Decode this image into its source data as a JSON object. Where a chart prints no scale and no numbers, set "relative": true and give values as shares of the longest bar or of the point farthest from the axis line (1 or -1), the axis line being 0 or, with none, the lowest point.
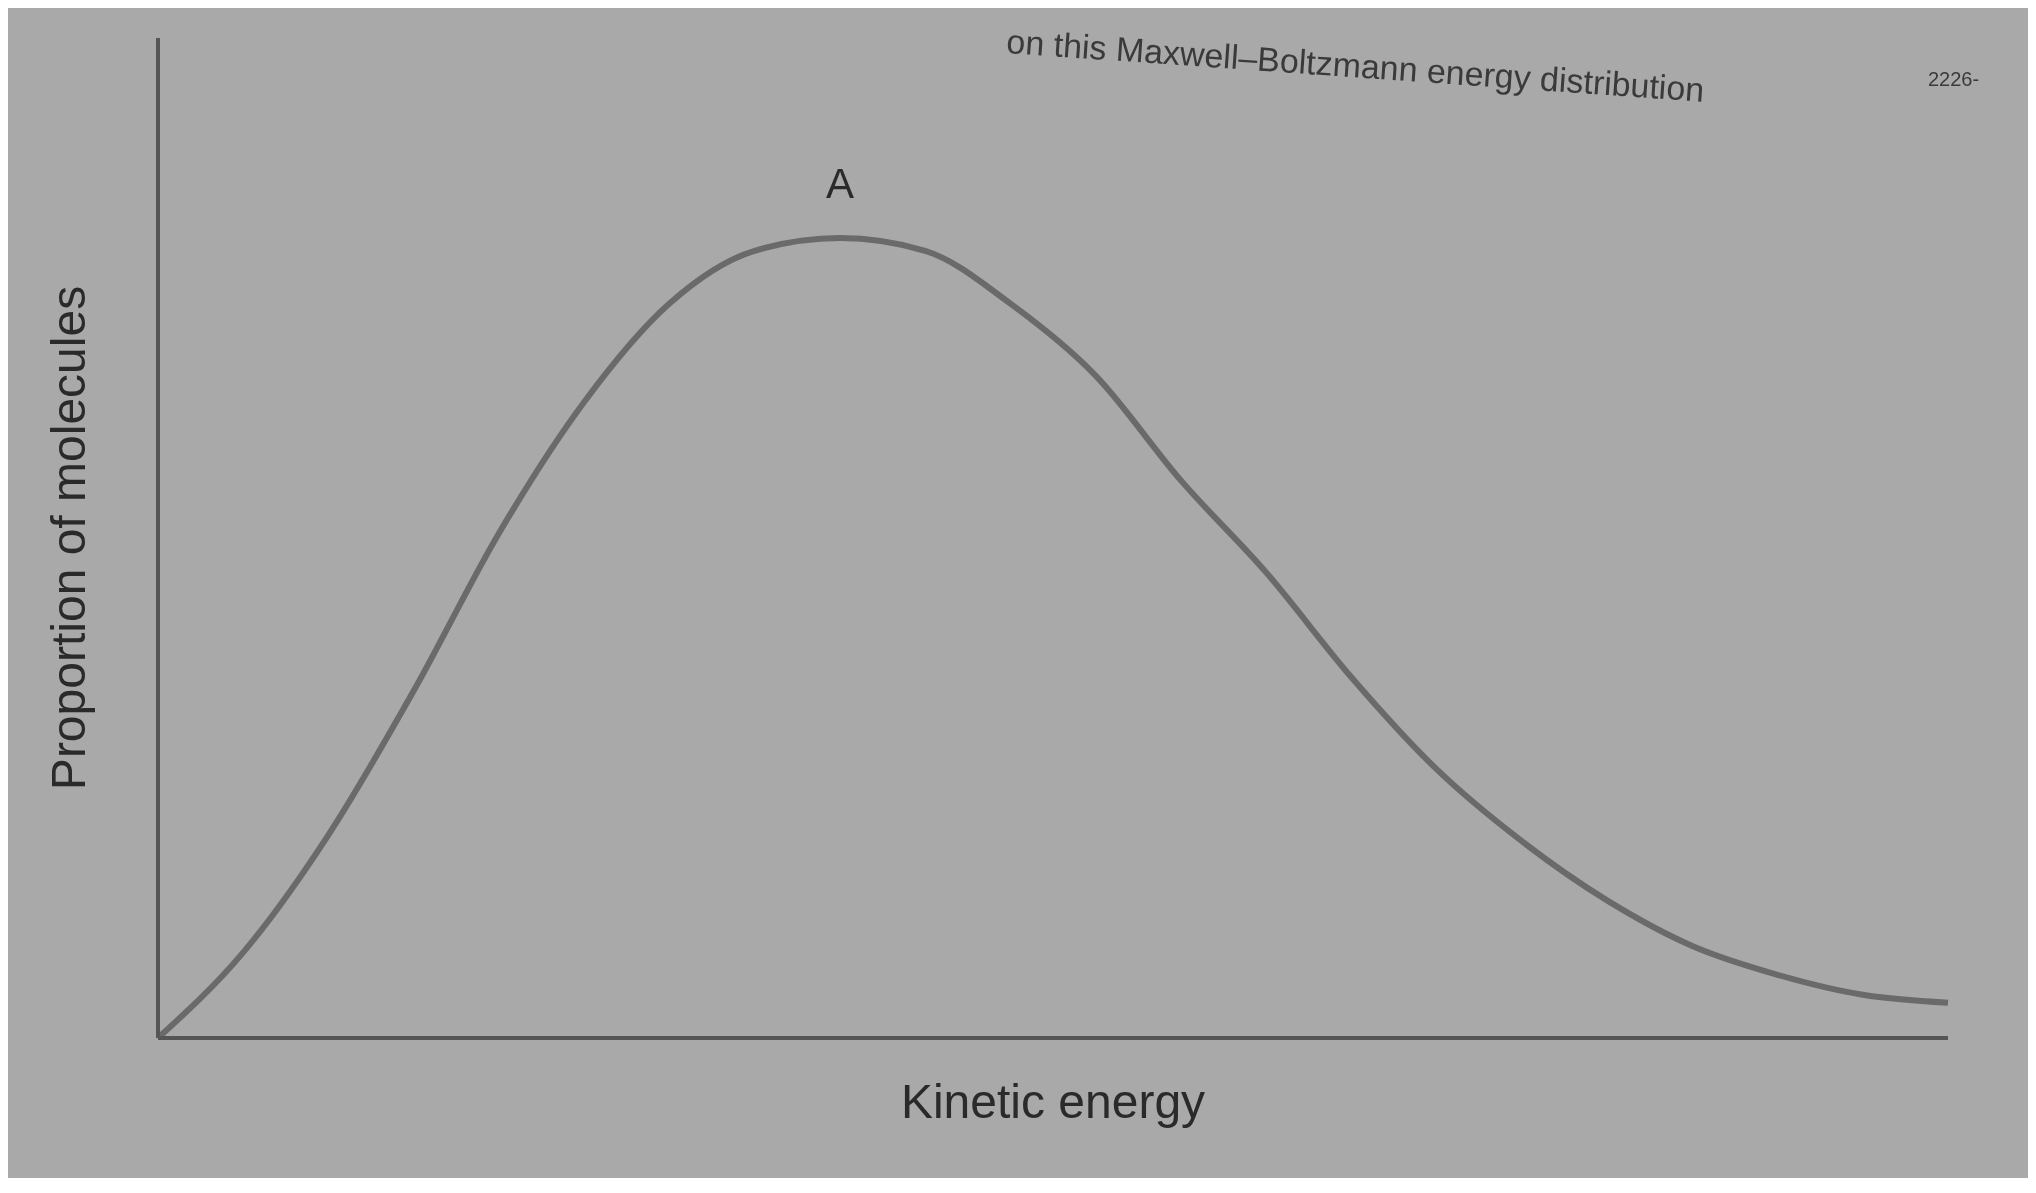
{
  "chart_data": {
    "type": "line",
    "relative": true,
    "xlabel": "Kinetic energy",
    "ylabel": "Proportion of molecules",
    "annotations": [
      "on this Maxwell–Boltzmann energy distribution",
      "2226-",
      {
        "text": "A",
        "y": 1
      }
    ],
    "categories": [
      null,
      null,
      null,
      null,
      null,
      null,
      null,
      null,
      null,
      null,
      null,
      null,
      null,
      null,
      null,
      null,
      null,
      null,
      null,
      null,
      null,
      null
    ],
    "series": [
      {
        "color": "#6a6a6a",
        "values": [
          0,
          0.107,
          0.254,
          0.434,
          0.631,
          0.795,
          0.918,
          0.984,
          1,
          0.984,
          0.918,
          0.828,
          0.697,
          0.582,
          0.451,
          0.336,
          0.246,
          0.172,
          0.115,
          0.079,
          0.054,
          0.044
        ]
      }
    ],
    "grid": false,
    "legend": false,
    "marker": "none",
    "line_style": "solid"
  }
}
